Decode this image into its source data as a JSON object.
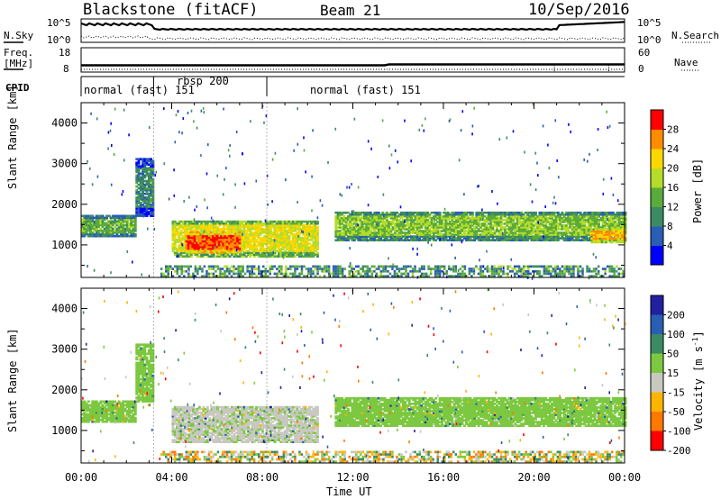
{
  "header": {
    "station": "Blackstone (fitACF)",
    "beam": "Beam 21",
    "date": "10/Sep/2016"
  },
  "side_labels": {
    "nsky": "N.Sky",
    "nsearch": "N.Search",
    "freq_line1": "Freq.",
    "freq_line2": "[MHz]",
    "nave": "Nave",
    "cpid": "CPID"
  },
  "top_axes": {
    "nsky_left_ticks": [
      "10^5",
      "10^0"
    ],
    "nsearch_right_ticks": [
      "10^5",
      "10^0"
    ],
    "freq_left_ticks": [
      "18",
      "8"
    ],
    "nave_right_ticks": [
      "60",
      "0"
    ]
  },
  "cpid_segments": [
    {
      "label": "normal (fast) 151",
      "start_h": 0,
      "end_h": 3.2
    },
    {
      "label": "rbsp 200",
      "start_h": 3.2,
      "end_h": 8.2
    },
    {
      "label": "normal (fast) 151",
      "start_h": 8.2,
      "end_h": 24
    }
  ],
  "chart_data": [
    {
      "type": "heatmap",
      "title": "Power",
      "ylabel": "Slant Range [km]",
      "xlabel": "Time UT",
      "xlim": [
        0,
        24
      ],
      "ylim": [
        200,
        4500
      ],
      "y_ticks": [
        1000,
        2000,
        3000,
        4000
      ],
      "colorbar": {
        "label": "Power [dB]",
        "ticks": [
          4,
          8,
          12,
          16,
          20,
          24,
          28
        ],
        "range": [
          0,
          32
        ],
        "colors": [
          "#0000ff",
          "#2a5db4",
          "#3c8a64",
          "#5aaa3c",
          "#b4dc28",
          "#ffd700",
          "#ff8c00",
          "#ff0000"
        ]
      },
      "regions": [
        {
          "t0": 0,
          "t1": 2.4,
          "r0": 1200,
          "r1": 1700,
          "level": 14
        },
        {
          "t0": 2.4,
          "t1": 3.2,
          "r0": 1700,
          "r1": 3100,
          "level": 10
        },
        {
          "t0": 4.0,
          "t1": 10.4,
          "r0": 700,
          "r1": 1600,
          "level": 20
        },
        {
          "t0": 4.6,
          "t1": 7.0,
          "r0": 800,
          "r1": 1300,
          "level": 28
        },
        {
          "t0": 11.2,
          "t1": 24,
          "r0": 1100,
          "r1": 1800,
          "level": 16
        },
        {
          "t0": 22.5,
          "t1": 24,
          "r0": 1050,
          "r1": 1400,
          "level": 24
        }
      ]
    },
    {
      "type": "heatmap",
      "title": "Velocity",
      "ylabel": "Slant Range [km]",
      "xlabel": "Time UT",
      "xlim": [
        0,
        24
      ],
      "ylim": [
        200,
        4500
      ],
      "y_ticks": [
        1000,
        2000,
        3000,
        4000
      ],
      "x_ticks": [
        "00:00",
        "04:00",
        "08:00",
        "12:00",
        "16:00",
        "20:00",
        "00:00"
      ],
      "colorbar": {
        "label_main": "Velocity [m s",
        "label_sup": "-1",
        "label_end": "]",
        "ticks": [
          200,
          100,
          50,
          15,
          -15,
          -50,
          -100,
          -200
        ],
        "colors": [
          "#2020a0",
          "#2a5db4",
          "#3c8a64",
          "#7cc840",
          "#c8c8c0",
          "#ffb400",
          "#ff7800",
          "#ff0000"
        ]
      },
      "regions": [
        {
          "t0": 0,
          "t1": 2.4,
          "r0": 1200,
          "r1": 1700,
          "level": 0
        },
        {
          "t0": 2.4,
          "t1": 3.2,
          "r0": 1700,
          "r1": 3100,
          "level": 0
        },
        {
          "t0": 4.0,
          "t1": 10.4,
          "r0": 700,
          "r1": 1600,
          "level": -20
        },
        {
          "t0": 11.2,
          "t1": 24,
          "r0": 1100,
          "r1": 1800,
          "level": 0
        }
      ]
    }
  ]
}
